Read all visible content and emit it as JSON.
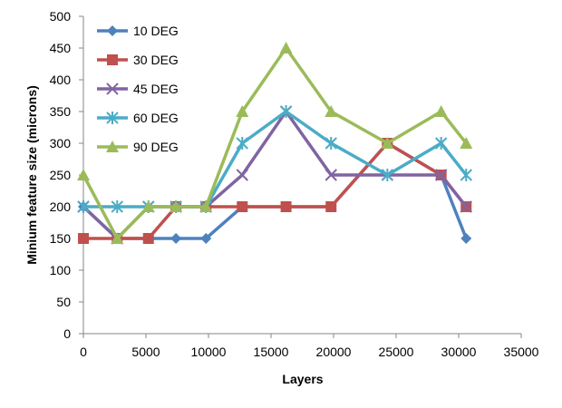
{
  "chart_data": {
    "type": "line",
    "title": "",
    "xlabel": "Layers",
    "ylabel": "Minium feature size (microns)",
    "xlim": [
      0,
      35000
    ],
    "ylim": [
      0,
      500
    ],
    "xticks": [
      0,
      5000,
      10000,
      15000,
      20000,
      25000,
      30000,
      35000
    ],
    "yticks": [
      0,
      50,
      100,
      150,
      200,
      250,
      300,
      350,
      400,
      450,
      500
    ],
    "grid": false,
    "legend_position": "top-left",
    "x": [
      0,
      2700,
      5200,
      7400,
      9800,
      12700,
      16200,
      19800,
      24300,
      28600,
      30600
    ],
    "series": [
      {
        "name": "10 DEG",
        "color": "#4F81BD",
        "marker": "diamond",
        "values": [
          200,
          150,
          150,
          150,
          150,
          200,
          200,
          200,
          300,
          250,
          150
        ]
      },
      {
        "name": "30 DEG",
        "color": "#C0504D",
        "marker": "square",
        "values": [
          150,
          150,
          150,
          200,
          200,
          200,
          200,
          200,
          300,
          250,
          200
        ]
      },
      {
        "name": "45 DEG",
        "color": "#8064A2",
        "marker": "x",
        "values": [
          200,
          150,
          200,
          200,
          200,
          250,
          350,
          250,
          250,
          250,
          200
        ]
      },
      {
        "name": "60 DEG",
        "color": "#4BACC6",
        "marker": "star",
        "values": [
          200,
          200,
          200,
          200,
          200,
          300,
          350,
          300,
          250,
          300,
          250
        ]
      },
      {
        "name": "90 DEG",
        "color": "#9BBB59",
        "marker": "triangle",
        "values": [
          250,
          150,
          200,
          200,
          200,
          350,
          450,
          350,
          300,
          350,
          300
        ]
      }
    ]
  }
}
